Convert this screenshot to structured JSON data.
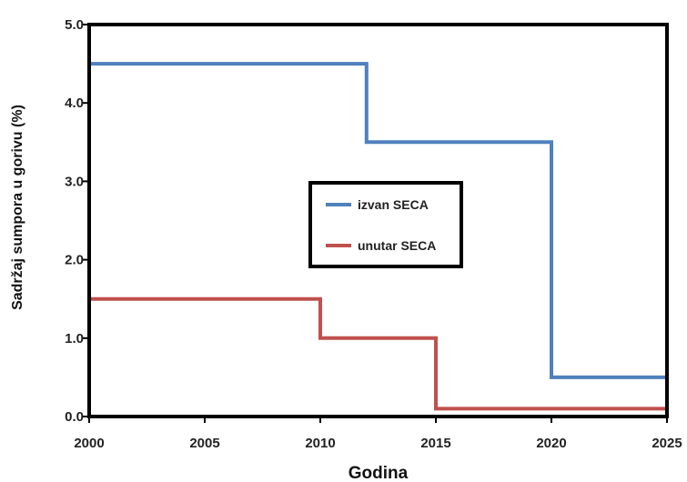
{
  "chart_data": {
    "type": "line",
    "step": true,
    "xlabel": "Godina",
    "ylabel": "Sadržaj sumpora u gorivu (%)",
    "xlim": [
      2000,
      2025
    ],
    "ylim": [
      0,
      5
    ],
    "x_ticks": [
      2000,
      2005,
      2010,
      2015,
      2020,
      2025
    ],
    "x_tick_labels": [
      "2000",
      "2005",
      "2010",
      "2015",
      "2020",
      "2025"
    ],
    "y_ticks": [
      0,
      1,
      2,
      3,
      4,
      5
    ],
    "y_tick_labels": [
      "0.0",
      "1.0",
      "2.0",
      "3.0",
      "4.0",
      "5.0"
    ],
    "grid": false,
    "legend_position": "center",
    "series": [
      {
        "name": "izvan SECA",
        "color": "#4f81bd",
        "points": [
          {
            "x": 2000,
            "y": 4.5
          },
          {
            "x": 2012,
            "y": 4.5
          },
          {
            "x": 2012,
            "y": 3.5
          },
          {
            "x": 2020,
            "y": 3.5
          },
          {
            "x": 2020,
            "y": 0.5
          },
          {
            "x": 2025,
            "y": 0.5
          }
        ]
      },
      {
        "name": "unutar SECA",
        "color": "#c0504d",
        "points": [
          {
            "x": 2000,
            "y": 1.5
          },
          {
            "x": 2010,
            "y": 1.5
          },
          {
            "x": 2010,
            "y": 1.0
          },
          {
            "x": 2015,
            "y": 1.0
          },
          {
            "x": 2015,
            "y": 0.1
          },
          {
            "x": 2025,
            "y": 0.1
          }
        ]
      }
    ]
  }
}
